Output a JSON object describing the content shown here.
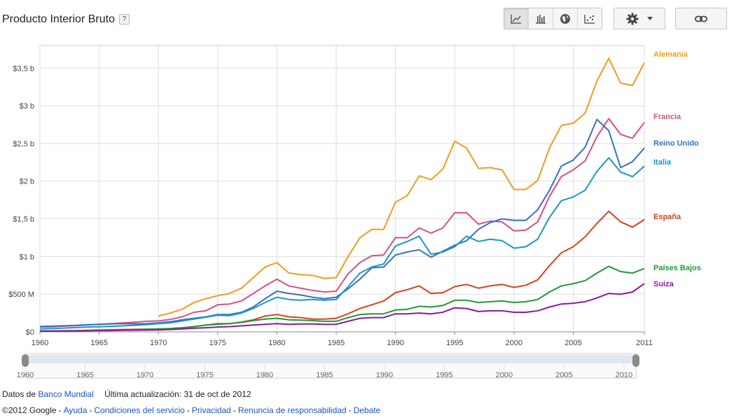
{
  "header": {
    "title": "Producto Interior Bruto",
    "help_label": "?"
  },
  "toolbar": {
    "chart_types": [
      {
        "name": "line-chart-icon",
        "active": true
      },
      {
        "name": "bar-chart-icon",
        "active": false
      },
      {
        "name": "globe-map-icon",
        "active": false
      },
      {
        "name": "scatter-plot-icon",
        "active": false
      }
    ],
    "settings_icon": "gear-icon",
    "link_icon": "link-icon"
  },
  "footer": {
    "source_prefix": "Datos de",
    "source_link": "Banco Mundial",
    "updated": "Última actualización: 31 de oct de 2012",
    "copyright": "©2012 Google",
    "links": [
      "Ayuda",
      "Condiciones del servicio",
      "Privacidad",
      "Renuncia de responsabilidad",
      "Debate"
    ]
  },
  "chart_data": {
    "type": "line",
    "y_ticks": [
      {
        "v": 0,
        "label": "$0"
      },
      {
        "v": 500,
        "label": "$500 M"
      },
      {
        "v": 1000,
        "label": "$1 b"
      },
      {
        "v": 1500,
        "label": "$1,5 b"
      },
      {
        "v": 2000,
        "label": "$2 b"
      },
      {
        "v": 2500,
        "label": "$2,5 b"
      },
      {
        "v": 3000,
        "label": "$3 b"
      },
      {
        "v": 3500,
        "label": "$3,5 b"
      }
    ],
    "x_ticks": [
      1960,
      1965,
      1970,
      1975,
      1980,
      1985,
      1990,
      1995,
      2000,
      2005,
      2011
    ],
    "xlim": [
      1960,
      2011
    ],
    "ylim": [
      0,
      3800
    ],
    "timeline": {
      "ticks": [
        1960,
        1965,
        1970,
        1975,
        1980,
        1985,
        1990,
        1995,
        2000,
        2005,
        2010
      ],
      "range": [
        1960,
        2011
      ]
    },
    "series": [
      {
        "name": "Alemania",
        "color": "#f39c1b",
        "start": 1970,
        "values": [
          210,
          250,
          300,
          390,
          440,
          480,
          510,
          580,
          720,
          860,
          920,
          780,
          760,
          750,
          710,
          720,
          1000,
          1250,
          1360,
          1360,
          1720,
          1810,
          2070,
          2020,
          2160,
          2530,
          2440,
          2170,
          2180,
          2150,
          1890,
          1890,
          2010,
          2440,
          2740,
          2770,
          2900,
          3330,
          3630,
          3300,
          3270,
          3570
        ]
      },
      {
        "name": "Francia",
        "color": "#d94f80",
        "start": 1960,
        "values": [
          65,
          68,
          75,
          83,
          92,
          100,
          110,
          118,
          128,
          140,
          145,
          165,
          200,
          260,
          280,
          360,
          370,
          410,
          510,
          610,
          700,
          610,
          580,
          550,
          530,
          540,
          770,
          920,
          1010,
          1020,
          1250,
          1250,
          1380,
          1310,
          1380,
          1580,
          1580,
          1430,
          1470,
          1460,
          1340,
          1350,
          1460,
          1800,
          2060,
          2150,
          2270,
          2590,
          2830,
          2620,
          2570,
          2780
        ]
      },
      {
        "name": "Reino Unido",
        "color": "#3a6fc4",
        "start": 1960,
        "values": [
          72,
          77,
          82,
          86,
          95,
          100,
          106,
          110,
          107,
          110,
          120,
          135,
          160,
          180,
          200,
          230,
          230,
          260,
          330,
          440,
          540,
          510,
          490,
          460,
          440,
          460,
          570,
          700,
          850,
          860,
          1020,
          1060,
          1090,
          990,
          1070,
          1150,
          1210,
          1360,
          1450,
          1500,
          1480,
          1480,
          1620,
          1880,
          2200,
          2280,
          2450,
          2820,
          2670,
          2180,
          2260,
          2440
        ]
      },
      {
        "name": "Italia",
        "color": "#1a98c7",
        "start": 1960,
        "values": [
          40,
          45,
          50,
          57,
          64,
          68,
          73,
          80,
          87,
          97,
          110,
          120,
          145,
          170,
          195,
          220,
          215,
          250,
          310,
          390,
          460,
          430,
          420,
          430,
          420,
          430,
          600,
          780,
          860,
          900,
          1140,
          1200,
          1270,
          1030,
          1060,
          1130,
          1270,
          1200,
          1230,
          1210,
          1110,
          1130,
          1230,
          1520,
          1740,
          1790,
          1880,
          2130,
          2310,
          2120,
          2060,
          2200
        ]
      },
      {
        "name": "España",
        "color": "#d9411e",
        "start": 1960,
        "values": [
          12,
          13,
          15,
          17,
          20,
          24,
          28,
          32,
          33,
          36,
          40,
          45,
          55,
          70,
          90,
          110,
          110,
          130,
          160,
          210,
          230,
          200,
          190,
          170,
          170,
          180,
          240,
          310,
          360,
          410,
          520,
          560,
          610,
          510,
          520,
          600,
          630,
          580,
          610,
          630,
          590,
          620,
          690,
          880,
          1050,
          1130,
          1260,
          1440,
          1600,
          1460,
          1390,
          1490
        ]
      },
      {
        "name": "Países Bajos",
        "color": "#1f9a37",
        "start": 1960,
        "values": [
          12,
          13,
          14,
          15,
          17,
          20,
          22,
          25,
          28,
          33,
          38,
          45,
          55,
          70,
          90,
          100,
          110,
          125,
          150,
          170,
          180,
          160,
          155,
          150,
          140,
          140,
          190,
          230,
          240,
          240,
          290,
          300,
          340,
          330,
          350,
          420,
          420,
          390,
          400,
          410,
          390,
          400,
          430,
          530,
          610,
          640,
          680,
          780,
          870,
          800,
          780,
          840
        ]
      },
      {
        "name": "Suiza",
        "color": "#8a1aa0",
        "start": 1960,
        "values": [
          9,
          10,
          12,
          13,
          15,
          16,
          18,
          20,
          22,
          24,
          26,
          32,
          38,
          48,
          55,
          64,
          70,
          80,
          90,
          100,
          110,
          100,
          105,
          105,
          100,
          100,
          140,
          180,
          190,
          190,
          240,
          240,
          250,
          240,
          260,
          320,
          310,
          270,
          280,
          280,
          260,
          260,
          280,
          330,
          370,
          380,
          400,
          450,
          510,
          500,
          530,
          640
        ]
      }
    ]
  }
}
